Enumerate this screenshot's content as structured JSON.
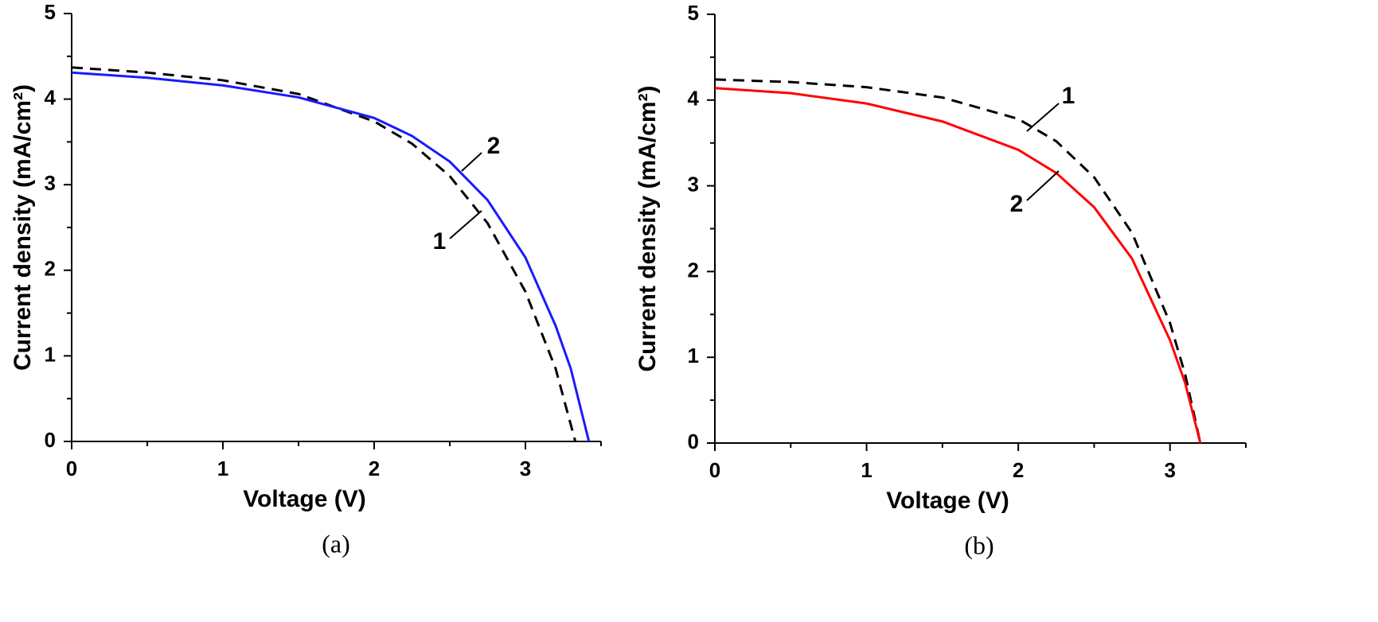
{
  "chart_data": [
    {
      "type": "line",
      "xlabel": "Voltage (V)",
      "ylabel": "Current density (mA/cm²)",
      "caption": "(a)",
      "xlim": [
        0,
        3.5
      ],
      "ylim": [
        0,
        5
      ],
      "xticks": [
        0,
        1,
        2,
        3
      ],
      "yticks": [
        0,
        1,
        2,
        3,
        4,
        5
      ],
      "x_minor_ticks": [
        0.5,
        1.5,
        2.5,
        3.5
      ],
      "y_minor_ticks": [
        0.5,
        1.5,
        2.5,
        3.5,
        4.5
      ],
      "series": [
        {
          "name": "1",
          "color": "#000000",
          "dash": true,
          "x": [
            0,
            0.5,
            1.0,
            1.5,
            2.0,
            2.25,
            2.5,
            2.75,
            3.0,
            3.2,
            3.33
          ],
          "values": [
            4.37,
            4.31,
            4.22,
            4.06,
            3.74,
            3.48,
            3.1,
            2.55,
            1.75,
            0.85,
            0
          ]
        },
        {
          "name": "2",
          "color": "#1a1aff",
          "dash": false,
          "x": [
            0,
            0.5,
            1.0,
            1.5,
            2.0,
            2.25,
            2.5,
            2.75,
            3.0,
            3.2,
            3.3,
            3.42
          ],
          "values": [
            4.31,
            4.25,
            4.16,
            4.02,
            3.78,
            3.57,
            3.27,
            2.82,
            2.15,
            1.35,
            0.85,
            0
          ]
        }
      ]
    },
    {
      "type": "line",
      "xlabel": "Voltage (V)",
      "ylabel": "Current density (mA/cm²)",
      "caption": "(b)",
      "xlim": [
        0,
        3.5
      ],
      "ylim": [
        0,
        5
      ],
      "xticks": [
        0,
        1,
        2,
        3
      ],
      "yticks": [
        0,
        1,
        2,
        3,
        4,
        5
      ],
      "x_minor_ticks": [
        0.5,
        1.5,
        2.5,
        3.5
      ],
      "y_minor_ticks": [
        0.5,
        1.5,
        2.5,
        3.5,
        4.5
      ],
      "series": [
        {
          "name": "1",
          "color": "#000000",
          "dash": true,
          "x": [
            0,
            0.5,
            1.0,
            1.5,
            2.0,
            2.25,
            2.5,
            2.75,
            3.0,
            3.1,
            3.2
          ],
          "values": [
            4.24,
            4.21,
            4.15,
            4.03,
            3.78,
            3.52,
            3.1,
            2.45,
            1.4,
            0.8,
            0
          ]
        },
        {
          "name": "2",
          "color": "#ff0000",
          "dash": false,
          "x": [
            0,
            0.5,
            1.0,
            1.5,
            2.0,
            2.25,
            2.5,
            2.75,
            3.0,
            3.1,
            3.2
          ],
          "values": [
            4.14,
            4.08,
            3.96,
            3.75,
            3.42,
            3.15,
            2.75,
            2.15,
            1.2,
            0.7,
            0
          ]
        }
      ]
    }
  ]
}
